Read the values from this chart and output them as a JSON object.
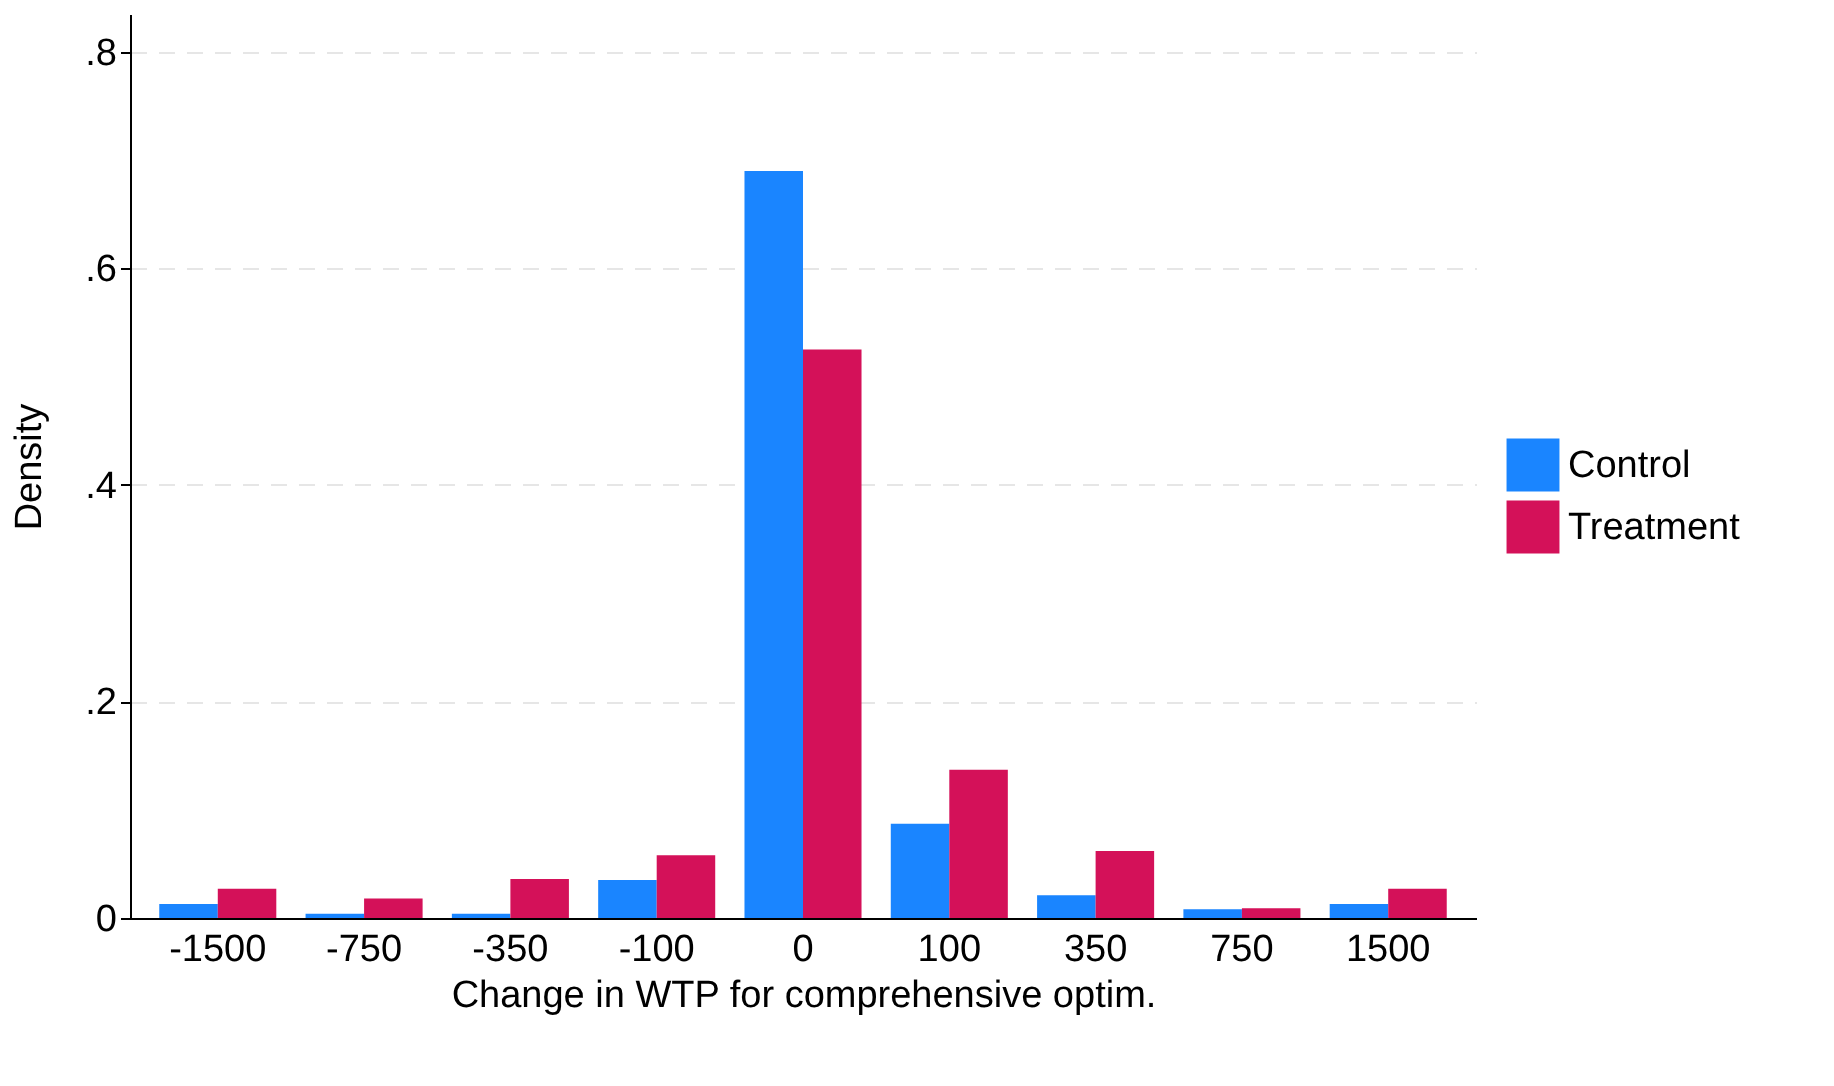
{
  "chart_data": {
    "type": "bar",
    "xlabel": "Change in WTP for comprehensive optim.",
    "ylabel": "Density",
    "categories": [
      "-1500",
      "-750",
      "-350",
      "-100",
      "0",
      "100",
      "350",
      "750",
      "1500"
    ],
    "series": [
      {
        "name": "Control",
        "color": "#1a85ff",
        "values": [
          0.013,
          0.004,
          0.004,
          0.035,
          0.69,
          0.087,
          0.021,
          0.008,
          0.013
        ]
      },
      {
        "name": "Treatment",
        "color": "#d41159",
        "values": [
          0.027,
          0.018,
          0.036,
          0.058,
          0.525,
          0.137,
          0.062,
          0.009,
          0.027
        ]
      }
    ],
    "ylim": [
      0,
      0.835
    ],
    "yticks": [
      {
        "value": 0,
        "label": "0"
      },
      {
        "value": 0.2,
        "label": ".2"
      },
      {
        "value": 0.4,
        "label": ".4"
      },
      {
        "value": 0.6,
        "label": ".6"
      },
      {
        "value": 0.8,
        "label": ".8"
      }
    ],
    "grid": "y",
    "legend": "right"
  }
}
